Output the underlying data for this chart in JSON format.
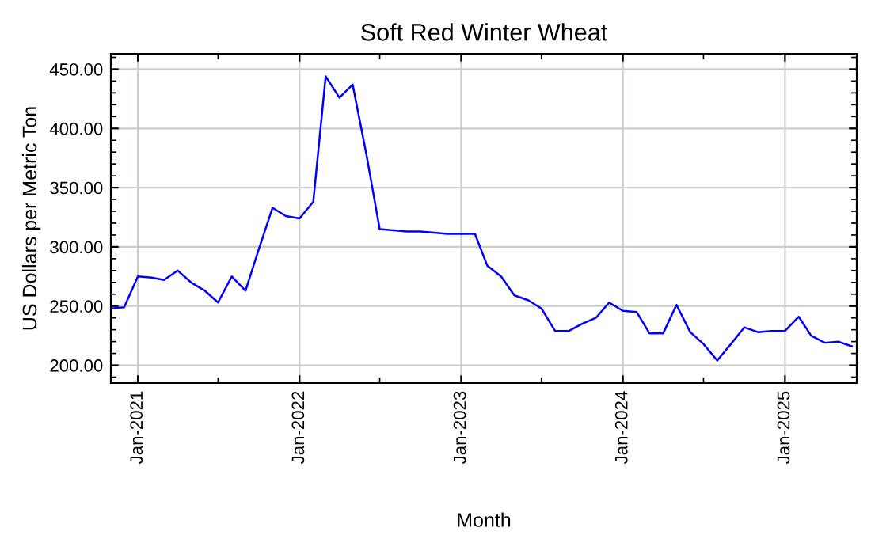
{
  "chart_data": {
    "type": "line",
    "title": "Soft Red Winter Wheat",
    "xlabel": "Month",
    "ylabel": "US Dollars per Metric Ton",
    "x": [
      "2020-11",
      "2020-12",
      "2021-01",
      "2021-02",
      "2021-03",
      "2021-04",
      "2021-05",
      "2021-06",
      "2021-07",
      "2021-08",
      "2021-09",
      "2021-10",
      "2021-11",
      "2021-12",
      "2022-01",
      "2022-02",
      "2022-03",
      "2022-04",
      "2022-05",
      "2022-06",
      "2022-07",
      "2022-08",
      "2022-09",
      "2022-10",
      "2022-11",
      "2022-12",
      "2023-01",
      "2023-02",
      "2023-03",
      "2023-04",
      "2023-05",
      "2023-06",
      "2023-07",
      "2023-08",
      "2023-09",
      "2023-10",
      "2023-11",
      "2023-12",
      "2024-01",
      "2024-02",
      "2024-03",
      "2024-04",
      "2024-05",
      "2024-06",
      "2024-07",
      "2024-08",
      "2024-09",
      "2024-10",
      "2024-11",
      "2024-12",
      "2025-01",
      "2025-02",
      "2025-03",
      "2025-04",
      "2025-05",
      "2025-06"
    ],
    "series": [
      {
        "color": "#0000ff",
        "values": [
          248,
          249,
          275,
          274,
          272,
          280,
          270,
          263,
          253,
          275,
          263,
          298,
          333,
          326,
          324,
          338,
          444,
          426,
          437,
          378,
          315,
          314,
          313,
          313,
          312,
          311,
          311,
          311,
          284,
          275,
          259,
          255,
          248,
          229,
          229,
          235,
          240,
          253,
          246,
          245,
          227,
          227,
          251,
          228,
          218,
          204,
          218,
          232,
          228,
          229,
          229,
          241,
          225,
          219,
          220,
          216
        ]
      }
    ],
    "xlim": [
      "2020-11-01",
      "2025-06-12"
    ],
    "ylim": [
      185,
      463
    ],
    "xticks": [
      {
        "value": "2021-01-01",
        "label": "Jan-2021"
      },
      {
        "value": "2022-01-01",
        "label": "Jan-2022"
      },
      {
        "value": "2023-01-01",
        "label": "Jan-2023"
      },
      {
        "value": "2024-01-01",
        "label": "Jan-2024"
      },
      {
        "value": "2025-01-01",
        "label": "Jan-2025"
      }
    ],
    "yticks": [
      {
        "value": 200,
        "label": "200.00"
      },
      {
        "value": 250,
        "label": "250.00"
      },
      {
        "value": 300,
        "label": "300.00"
      },
      {
        "value": 350,
        "label": "350.00"
      },
      {
        "value": 400,
        "label": "400.00"
      },
      {
        "value": 450,
        "label": "450.00"
      }
    ],
    "grid": true,
    "legend": false,
    "marker": "none",
    "line_style": "solid"
  }
}
